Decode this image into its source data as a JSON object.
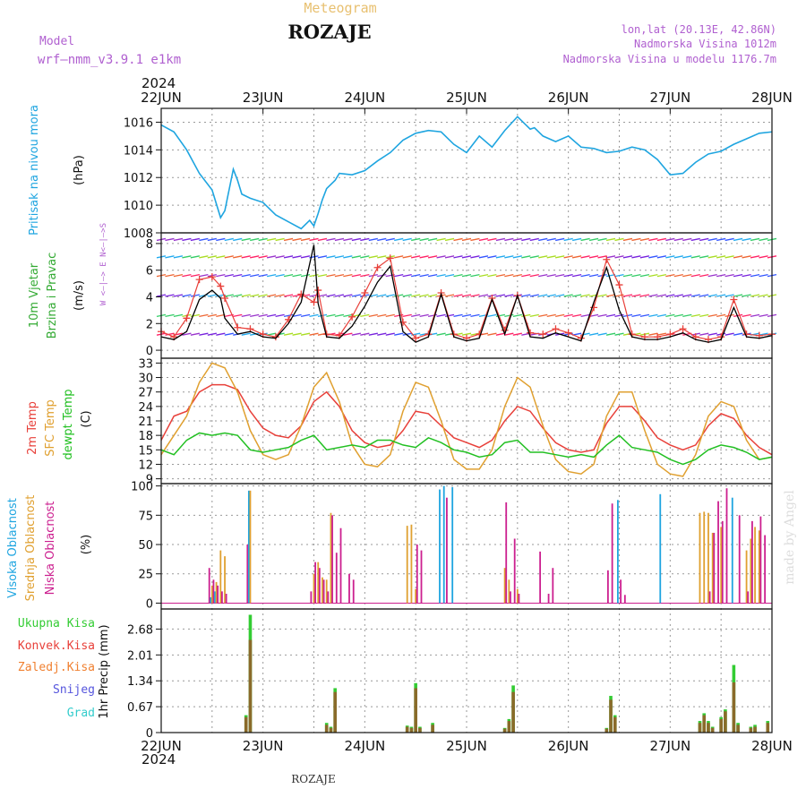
{
  "header": {
    "kicker": "Meteogram",
    "station": "ROZAJE",
    "model_label": "Model",
    "model_name": "wrf—nmm_v3.9.1  e1km",
    "coords": "lon,lat (20.13E, 42.86N)",
    "altitude": "Nadmorska Visina 1012m",
    "model_altitude": "Nadmorska Visina u modelu 1176.7m",
    "year": "2024",
    "footer_station": "ROZAJE",
    "watermark": "made by Angel"
  },
  "colors": {
    "pressure": "#1fa5e0",
    "wind_speed": "#000000",
    "gust": "#e8403a",
    "t2m": "#e8403a",
    "sfc": "#e0a030",
    "dewpt": "#22c022",
    "high_cloud": "#1fa5e0",
    "mid_cloud": "#e0a030",
    "low_cloud": "#cc1f8f",
    "total_precip": "#33cc33",
    "conv_precip": "#e8403a",
    "frozen_precip": "#f08030",
    "snow": "#5555dd",
    "graupel": "#33cccc"
  },
  "chart_data": [
    {
      "type": "line",
      "panel": "pressure",
      "ylabel": [
        "Pritisak na nivou mora",
        "(hPa)"
      ],
      "x_ticks": [
        "22JUN",
        "23JUN",
        "24JUN",
        "25JUN",
        "26JUN",
        "27JUN",
        "28JUN"
      ],
      "x_range_hours": [
        0,
        144
      ],
      "ylim": [
        1008,
        1017
      ],
      "y_ticks": [
        1008,
        1010,
        1012,
        1014,
        1016
      ],
      "x_hours": [
        0,
        3,
        6,
        9,
        12,
        14,
        15,
        17,
        18,
        19,
        21,
        24,
        27,
        30,
        33,
        35,
        36,
        37,
        38,
        39,
        41,
        42,
        45,
        48,
        51,
        54,
        57,
        60,
        63,
        66,
        69,
        72,
        75,
        78,
        81,
        84,
        86,
        87,
        88,
        90,
        93,
        96,
        99,
        102,
        105,
        108,
        111,
        114,
        117,
        120,
        123,
        126,
        129,
        132,
        135,
        138,
        141,
        144
      ],
      "values": [
        1015.8,
        1015.3,
        1014.0,
        1012.3,
        1011.1,
        1009.1,
        1009.6,
        1012.6,
        1011.8,
        1010.8,
        1010.5,
        1010.2,
        1009.3,
        1008.8,
        1008.3,
        1008.9,
        1008.5,
        1009.4,
        1010.4,
        1011.2,
        1011.8,
        1012.3,
        1012.2,
        1012.5,
        1013.2,
        1013.8,
        1014.7,
        1015.2,
        1015.4,
        1015.3,
        1014.4,
        1013.8,
        1015.0,
        1014.2,
        1015.4,
        1016.4,
        1015.8,
        1015.5,
        1015.6,
        1015.0,
        1014.6,
        1015.0,
        1014.2,
        1014.1,
        1013.8,
        1013.9,
        1014.2,
        1014.0,
        1013.3,
        1012.2,
        1012.3,
        1013.1,
        1013.7,
        1013.9,
        1014.4,
        1014.8,
        1015.2,
        1015.3
      ]
    },
    {
      "type": "line",
      "panel": "wind",
      "ylabel": [
        "10m Vjetar",
        "Brzina i Pravac",
        "(m/s)"
      ],
      "direction_legend": "W <—|—> E  N<—|—>S",
      "ylim": [
        -0.6,
        8.8
      ],
      "y_ticks": [
        0,
        2,
        4,
        6,
        8
      ],
      "x_hours": [
        0,
        3,
        6,
        9,
        12,
        14,
        15,
        18,
        21,
        24,
        27,
        30,
        33,
        36,
        37,
        39,
        42,
        45,
        48,
        51,
        54,
        57,
        60,
        63,
        66,
        69,
        72,
        75,
        78,
        81,
        84,
        87,
        90,
        93,
        96,
        99,
        102,
        105,
        108,
        111,
        114,
        117,
        120,
        123,
        126,
        129,
        132,
        135,
        138,
        141,
        144
      ],
      "series": [
        {
          "name": "brzina",
          "values": [
            1.0,
            0.8,
            1.4,
            3.8,
            4.5,
            3.9,
            2.4,
            1.2,
            1.4,
            1.0,
            0.9,
            2.0,
            3.6,
            7.9,
            3.5,
            1.0,
            0.9,
            1.8,
            3.3,
            5.1,
            6.3,
            1.4,
            0.6,
            1.0,
            4.2,
            1.0,
            0.7,
            0.9,
            3.8,
            1.2,
            4.1,
            1.0,
            0.9,
            1.3,
            1.0,
            0.7,
            3.6,
            6.2,
            3.0,
            1.0,
            0.8,
            0.8,
            1.0,
            1.3,
            0.8,
            0.6,
            0.8,
            3.2,
            1.0,
            0.9,
            1.1
          ]
        },
        {
          "name": "udari",
          "values": [
            1.4,
            1.0,
            2.4,
            5.3,
            5.5,
            4.8,
            3.9,
            1.7,
            1.6,
            1.2,
            1.0,
            2.3,
            4.2,
            3.6,
            4.5,
            1.2,
            1.1,
            2.5,
            4.3,
            6.2,
            6.9,
            2.1,
            0.9,
            1.2,
            4.3,
            1.2,
            0.9,
            1.2,
            3.9,
            1.5,
            4.1,
            1.3,
            1.2,
            1.6,
            1.3,
            0.9,
            3.2,
            6.8,
            4.9,
            1.2,
            1.0,
            1.0,
            1.2,
            1.6,
            1.0,
            0.8,
            1.0,
            3.8,
            1.2,
            1.1,
            1.2
          ]
        }
      ]
    },
    {
      "type": "line",
      "panel": "temperature",
      "ylabel": [
        "2m Temp",
        "SFC Temp",
        "dewpt Temp",
        "(C)"
      ],
      "ylim": [
        8,
        34
      ],
      "y_ticks": [
        9,
        12,
        15,
        18,
        21,
        24,
        27,
        30,
        33
      ],
      "x_hours": [
        0,
        3,
        6,
        9,
        12,
        15,
        18,
        21,
        24,
        27,
        30,
        33,
        36,
        39,
        42,
        45,
        48,
        51,
        54,
        57,
        60,
        63,
        66,
        69,
        72,
        75,
        78,
        81,
        84,
        87,
        90,
        93,
        96,
        99,
        102,
        105,
        108,
        111,
        114,
        117,
        120,
        123,
        126,
        129,
        132,
        135,
        138,
        141,
        144
      ],
      "series": [
        {
          "name": "2m Temp",
          "values": [
            17,
            22,
            23,
            27,
            28.5,
            28.5,
            27.5,
            23,
            19.5,
            18,
            17.5,
            20,
            25,
            27,
            24,
            19,
            16.5,
            15.5,
            16,
            19,
            23,
            22.5,
            20,
            17.5,
            16.5,
            15.5,
            17,
            21,
            24,
            23,
            19.5,
            16.5,
            15,
            14.5,
            15,
            20.5,
            24,
            24,
            21,
            17.5,
            16,
            15,
            16,
            20,
            22.5,
            21.5,
            18,
            15.5,
            14
          ]
        },
        {
          "name": "SFC Temp",
          "values": [
            14,
            18,
            22,
            29,
            33,
            32,
            27,
            19,
            14,
            13,
            14,
            20,
            28,
            31,
            25,
            16,
            12,
            11.5,
            14,
            23,
            29,
            28,
            21,
            13,
            11,
            11,
            15,
            24,
            30,
            28,
            20,
            13,
            10.5,
            10,
            12,
            22,
            27,
            27,
            19,
            12,
            10,
            9.5,
            14,
            22,
            25,
            24,
            17,
            13,
            13.5
          ]
        },
        {
          "name": "dewpt Temp",
          "values": [
            15,
            14,
            17,
            18.5,
            18,
            18.5,
            18,
            15,
            14.5,
            15,
            15.5,
            17,
            18,
            15,
            15.5,
            16,
            15.5,
            17,
            17,
            16,
            15.5,
            17.5,
            16.5,
            15,
            14.5,
            13.5,
            14,
            16.5,
            17,
            14.5,
            14.5,
            14,
            13.5,
            14,
            13.5,
            16,
            18,
            15.5,
            15,
            14.5,
            13,
            12,
            13,
            15,
            16,
            15.5,
            14.5,
            13,
            13.5
          ]
        }
      ]
    },
    {
      "type": "bar",
      "panel": "clouds",
      "ylabel": [
        "Visoka Oblacnost",
        "Srednja Oblacnost",
        "Niska Oblacnost",
        "(%)"
      ],
      "ylim": [
        -5,
        102
      ],
      "y_ticks": [
        0,
        25,
        50,
        75,
        100
      ],
      "x_hours": [
        11,
        12,
        13,
        14,
        15,
        16,
        17,
        18,
        20,
        21,
        35,
        36,
        37,
        38,
        39,
        40,
        41,
        42,
        44,
        45,
        57,
        58,
        59,
        60,
        61,
        62,
        63,
        64,
        65,
        66,
        67,
        69,
        80,
        81,
        82,
        83,
        84,
        85,
        86,
        87,
        88,
        89,
        90,
        91,
        92,
        105,
        106,
        107,
        108,
        109,
        110,
        111,
        117,
        118,
        126,
        127,
        128,
        129,
        130,
        131,
        132,
        133,
        134,
        135,
        136,
        137,
        138,
        139,
        140,
        141,
        142,
        143
      ],
      "series": [
        {
          "name": "Visoka Oblacnost",
          "values": [
            0,
            5,
            10,
            0,
            0,
            0,
            0,
            0,
            0,
            96,
            0,
            0,
            0,
            0,
            0,
            0,
            0,
            0,
            0,
            0,
            0,
            0,
            0,
            0,
            0,
            0,
            0,
            0,
            0,
            97,
            100,
            99,
            0,
            0,
            0,
            0,
            0,
            0,
            0,
            0,
            0,
            0,
            0,
            0,
            0,
            0,
            0,
            0,
            88,
            0,
            0,
            0,
            0,
            93,
            0,
            0,
            0,
            0,
            0,
            0,
            0,
            0,
            0,
            90,
            0,
            0,
            0,
            0,
            0,
            0,
            0,
            0
          ]
        },
        {
          "name": "Srednja Oblacnost",
          "values": [
            0,
            15,
            18,
            45,
            40,
            0,
            0,
            0,
            0,
            96,
            0,
            25,
            35,
            22,
            20,
            77,
            0,
            0,
            0,
            0,
            0,
            66,
            67,
            12,
            0,
            0,
            0,
            0,
            0,
            0,
            0,
            0,
            0,
            30,
            20,
            0,
            12,
            0,
            0,
            0,
            0,
            0,
            0,
            0,
            0,
            0,
            0,
            0,
            0,
            0,
            0,
            0,
            0,
            0,
            0,
            77,
            78,
            77,
            60,
            0,
            65,
            0,
            0,
            0,
            0,
            0,
            45,
            55,
            65,
            62,
            0,
            0
          ]
        },
        {
          "name": "Niska Oblacnost",
          "values": [
            30,
            20,
            15,
            10,
            8,
            0,
            0,
            0,
            50,
            0,
            10,
            35,
            30,
            20,
            10,
            75,
            43,
            64,
            25,
            20,
            0,
            0,
            0,
            50,
            45,
            0,
            0,
            0,
            0,
            0,
            90,
            0,
            0,
            86,
            10,
            55,
            8,
            0,
            0,
            0,
            0,
            44,
            0,
            8,
            30,
            28,
            85,
            0,
            20,
            7,
            0,
            0,
            0,
            0,
            0,
            0,
            0,
            10,
            60,
            87,
            70,
            98,
            0,
            0,
            75,
            0,
            10,
            70,
            0,
            74,
            58,
            0
          ]
        }
      ]
    },
    {
      "type": "bar",
      "panel": "precip",
      "ylabel": [
        "1hr Precip (mm)"
      ],
      "legend": [
        "Ukupna Kisa",
        "Konvek.Kisa",
        "Zaledj.Kisa",
        "Snijeg",
        "Grad"
      ],
      "ylim": [
        0,
        3.2
      ],
      "y_ticks": [
        0,
        0.67,
        1.34,
        2.01,
        2.68
      ],
      "x_hours": [
        11,
        12,
        13,
        14,
        15,
        16,
        17,
        18,
        20,
        21,
        35,
        36,
        37,
        38,
        39,
        40,
        41,
        42,
        44,
        45,
        57,
        58,
        59,
        60,
        61,
        62,
        63,
        64,
        65,
        66,
        67,
        69,
        80,
        81,
        82,
        83,
        84,
        85,
        86,
        87,
        88,
        89,
        90,
        91,
        92,
        105,
        106,
        107,
        108,
        109,
        110,
        111,
        117,
        118,
        126,
        127,
        128,
        129,
        130,
        131,
        132,
        133,
        134,
        135,
        136,
        137,
        138,
        139,
        140,
        141,
        142,
        143
      ],
      "series": [
        {
          "name": "Ukupna Kisa",
          "values": [
            0,
            0,
            0,
            0,
            0,
            0,
            0,
            0,
            0.45,
            3.05,
            0,
            0,
            0,
            0,
            0.25,
            0.15,
            1.15,
            0,
            0,
            0,
            0,
            0.18,
            0.15,
            1.28,
            0.15,
            0,
            0,
            0.25,
            0,
            0,
            0,
            0,
            0,
            0.12,
            0.35,
            1.22,
            0,
            0,
            0,
            0,
            0,
            0,
            0,
            0,
            0,
            0.12,
            0.95,
            0.45,
            0,
            0,
            0,
            0,
            0,
            0,
            0,
            0.3,
            0.5,
            0.3,
            0.15,
            0,
            0.4,
            0.6,
            0,
            1.75,
            0.25,
            0,
            0,
            0.15,
            0.2,
            0,
            0,
            0.3
          ]
        },
        {
          "name": "Konvek.Kisa",
          "values": [
            0,
            0,
            0,
            0,
            0,
            0,
            0,
            0,
            0.4,
            2.4,
            0,
            0,
            0,
            0,
            0.2,
            0.12,
            1.05,
            0,
            0,
            0,
            0,
            0.15,
            0.12,
            1.15,
            0.12,
            0,
            0,
            0.2,
            0,
            0,
            0,
            0,
            0,
            0.1,
            0.3,
            1.05,
            0,
            0,
            0,
            0,
            0,
            0,
            0,
            0,
            0,
            0.1,
            0.85,
            0.4,
            0,
            0,
            0,
            0,
            0,
            0,
            0,
            0.25,
            0.45,
            0.25,
            0.12,
            0,
            0.35,
            0.55,
            0,
            1.3,
            0.2,
            0,
            0,
            0.12,
            0.15,
            0,
            0,
            0.25
          ]
        }
      ]
    }
  ]
}
